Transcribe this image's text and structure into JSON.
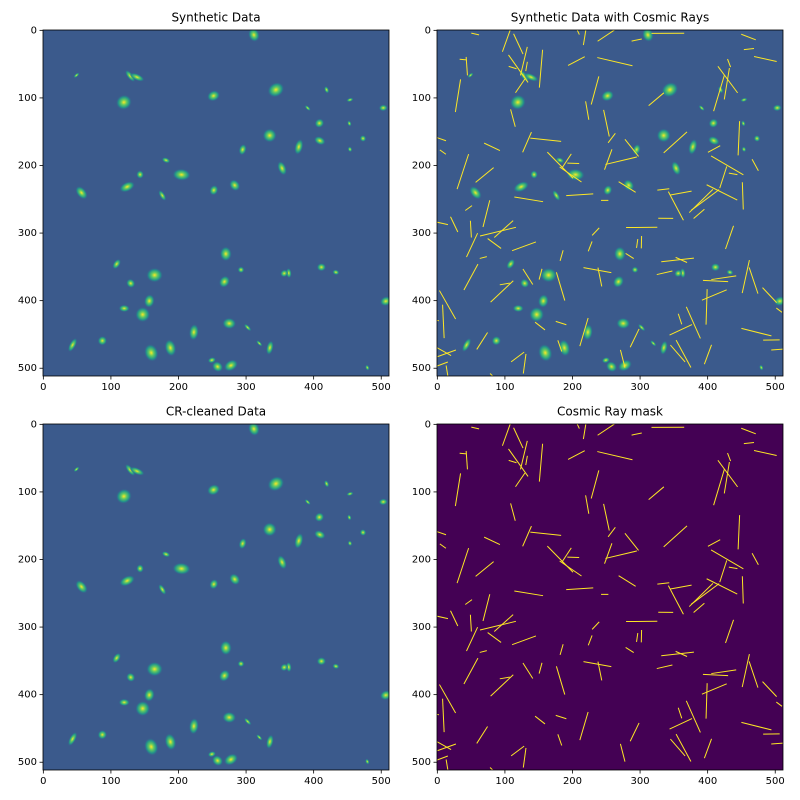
{
  "chart_data": [
    {
      "type": "image",
      "title": "Synthetic Data",
      "xlim": [
        -0.5,
        511.5
      ],
      "ylim": [
        511.5,
        -0.5
      ],
      "xticks": [
        0,
        100,
        200,
        300,
        400,
        500
      ],
      "yticks": [
        0,
        100,
        200,
        300,
        400,
        500
      ]
    },
    {
      "type": "image",
      "title": "Synthetic Data with Cosmic Rays",
      "xlim": [
        -0.5,
        511.5
      ],
      "ylim": [
        511.5,
        -0.5
      ],
      "xticks": [
        0,
        100,
        200,
        300,
        400,
        500
      ],
      "yticks": [
        0,
        100,
        200,
        300,
        400,
        500
      ]
    },
    {
      "type": "image",
      "title": "CR-cleaned Data",
      "xlim": [
        -0.5,
        511.5
      ],
      "ylim": [
        511.5,
        -0.5
      ],
      "xticks": [
        0,
        100,
        200,
        300,
        400,
        500
      ],
      "yticks": [
        0,
        100,
        200,
        300,
        400,
        500
      ]
    },
    {
      "type": "image",
      "title": "Cosmic Ray mask",
      "xlim": [
        -0.5,
        511.5
      ],
      "ylim": [
        511.5,
        -0.5
      ],
      "xticks": [
        0,
        100,
        200,
        300,
        400,
        500
      ],
      "yticks": [
        0,
        100,
        200,
        300,
        400,
        500
      ]
    }
  ]
}
